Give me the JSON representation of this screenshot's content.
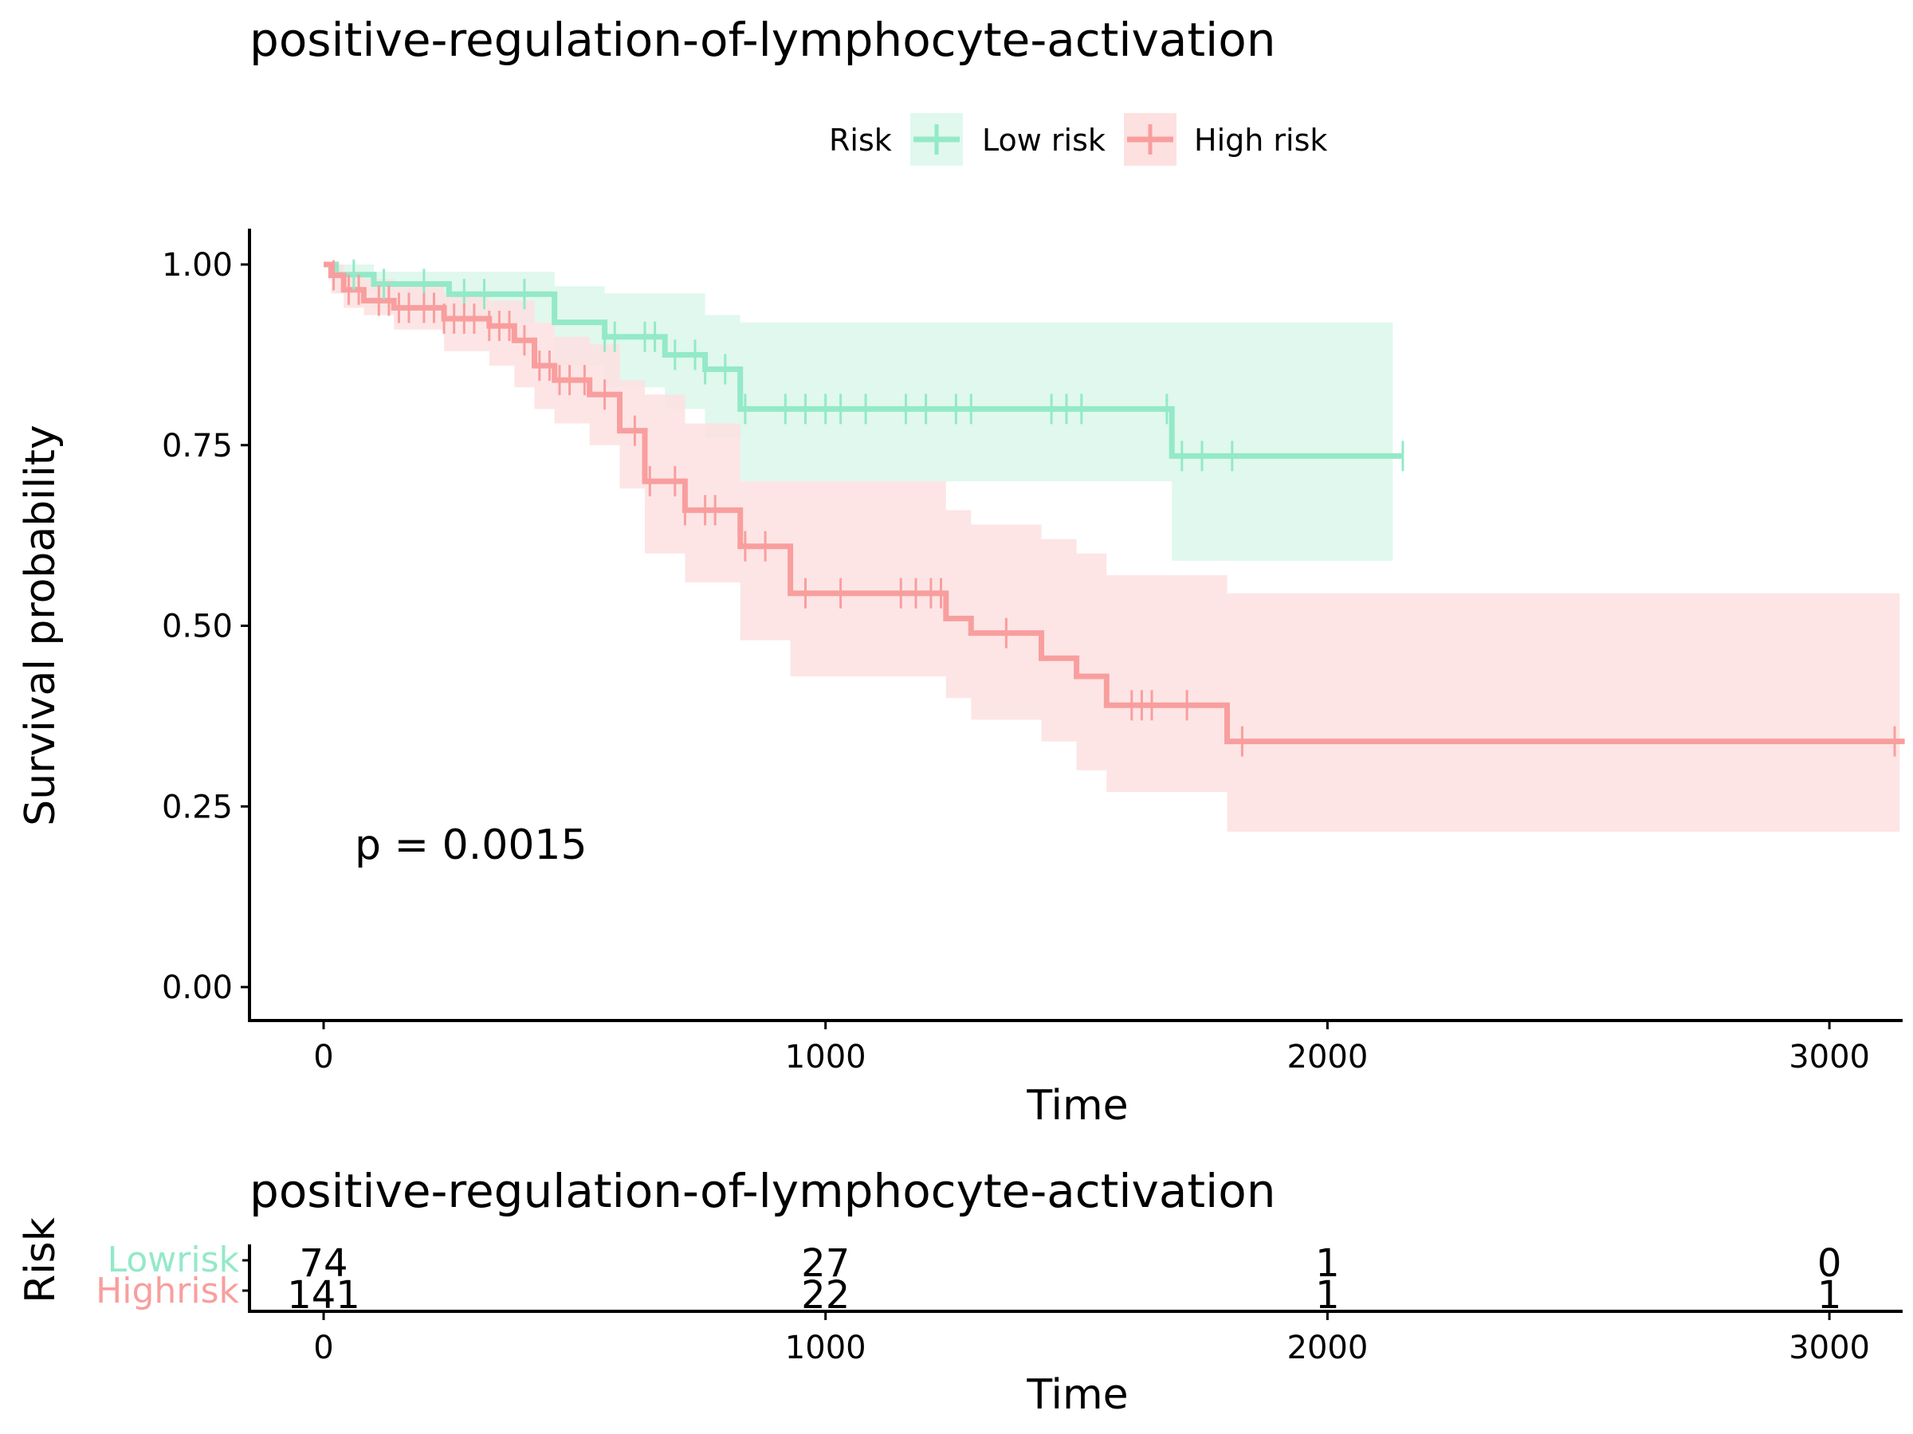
{
  "colors": {
    "low": "#93E9C8",
    "low_band": "#E0F8EE",
    "high": "#F99E9E",
    "high_band": "#FDE0E0",
    "axis": "#000000"
  },
  "km_plot": {
    "title": "positive-regulation-of-lymphocyte-activation",
    "xlabel": "Time",
    "ylabel": "Survival probability",
    "pvalue": "p = 0.0015",
    "legend": {
      "title": "Risk",
      "low_label": "Low risk",
      "high_label": "High risk"
    },
    "x_ticks": [
      "0",
      "1000",
      "2000",
      "3000"
    ],
    "y_ticks": [
      "0.00",
      "0.25",
      "0.50",
      "0.75",
      "1.00"
    ]
  },
  "risk_table": {
    "title": "positive-regulation-of-lymphocyte-activation",
    "ylabel": "Risk",
    "xlabel": "Time",
    "row_labels": {
      "low": "Lowrisk",
      "high": "Highrisk"
    },
    "low_counts": [
      "74",
      "27",
      "1",
      "0"
    ],
    "high_counts": [
      "141",
      "22",
      "1",
      "1"
    ],
    "x_ticks": [
      "0",
      "1000",
      "2000",
      "3000"
    ]
  },
  "chart_data": {
    "type": "line",
    "subtype": "kaplan-meier",
    "title": "positive-regulation-of-lymphocyte-activation",
    "xlabel": "Time",
    "ylabel": "Survival probability",
    "xlim": [
      -150,
      3150
    ],
    "ylim": [
      -0.05,
      1.05
    ],
    "x_ticks": [
      0,
      1000,
      2000,
      3000
    ],
    "y_ticks": [
      0,
      0.25,
      0.5,
      0.75,
      1.0
    ],
    "legend_position": "top",
    "pvalue": 0.0015,
    "series": [
      {
        "name": "Low risk",
        "steps": [
          [
            0,
            1.0
          ],
          [
            25,
            0.986
          ],
          [
            100,
            0.973
          ],
          [
            250,
            0.959
          ],
          [
            460,
            0.92
          ],
          [
            560,
            0.9
          ],
          [
            680,
            0.875
          ],
          [
            760,
            0.855
          ],
          [
            830,
            0.8
          ],
          [
            1690,
            0.735
          ],
          [
            2150,
            0.735
          ]
        ],
        "ci": [
          [
            0,
            1.0,
            1.0
          ],
          [
            25,
            1.0,
            0.96
          ],
          [
            100,
            0.99,
            0.94
          ],
          [
            250,
            0.99,
            0.92
          ],
          [
            460,
            0.97,
            0.86
          ],
          [
            560,
            0.96,
            0.83
          ],
          [
            680,
            0.96,
            0.8
          ],
          [
            760,
            0.93,
            0.76
          ],
          [
            830,
            0.92,
            0.7
          ],
          [
            1690,
            0.92,
            0.59
          ],
          [
            2130,
            0.92,
            0.59
          ]
        ],
        "censor": [
          60,
          120,
          200,
          280,
          320,
          400,
          560,
          580,
          640,
          660,
          700,
          740,
          760,
          800,
          840,
          920,
          960,
          1000,
          1030,
          1080,
          1160,
          1200,
          1260,
          1290,
          1450,
          1480,
          1510,
          1680,
          1710,
          1750,
          1810,
          2150
        ]
      },
      {
        "name": "High risk",
        "steps": [
          [
            0,
            1.0
          ],
          [
            15,
            0.985
          ],
          [
            40,
            0.965
          ],
          [
            80,
            0.95
          ],
          [
            140,
            0.94
          ],
          [
            240,
            0.925
          ],
          [
            330,
            0.915
          ],
          [
            380,
            0.895
          ],
          [
            420,
            0.86
          ],
          [
            460,
            0.84
          ],
          [
            530,
            0.82
          ],
          [
            590,
            0.77
          ],
          [
            640,
            0.7
          ],
          [
            720,
            0.66
          ],
          [
            830,
            0.61
          ],
          [
            930,
            0.545
          ],
          [
            1240,
            0.51
          ],
          [
            1290,
            0.49
          ],
          [
            1430,
            0.455
          ],
          [
            1500,
            0.43
          ],
          [
            1560,
            0.39
          ],
          [
            1800,
            0.34
          ],
          [
            3150,
            0.34
          ]
        ],
        "ci": [
          [
            0,
            1.0,
            1.0
          ],
          [
            15,
            1.0,
            0.96
          ],
          [
            40,
            0.99,
            0.94
          ],
          [
            80,
            0.98,
            0.93
          ],
          [
            140,
            0.97,
            0.91
          ],
          [
            240,
            0.96,
            0.88
          ],
          [
            330,
            0.95,
            0.86
          ],
          [
            380,
            0.95,
            0.83
          ],
          [
            420,
            0.92,
            0.8
          ],
          [
            460,
            0.9,
            0.78
          ],
          [
            530,
            0.89,
            0.75
          ],
          [
            590,
            0.84,
            0.69
          ],
          [
            640,
            0.82,
            0.6
          ],
          [
            720,
            0.78,
            0.56
          ],
          [
            830,
            0.7,
            0.48
          ],
          [
            930,
            0.7,
            0.43
          ],
          [
            1240,
            0.66,
            0.4
          ],
          [
            1290,
            0.64,
            0.37
          ],
          [
            1430,
            0.62,
            0.34
          ],
          [
            1500,
            0.6,
            0.3
          ],
          [
            1560,
            0.57,
            0.27
          ],
          [
            1800,
            0.545,
            0.215
          ],
          [
            3140,
            0.545,
            0.215
          ]
        ],
        "censor": [
          20,
          50,
          70,
          110,
          130,
          150,
          170,
          200,
          220,
          240,
          260,
          280,
          300,
          330,
          350,
          370,
          400,
          430,
          450,
          470,
          490,
          520,
          560,
          620,
          650,
          700,
          720,
          760,
          780,
          840,
          880,
          960,
          1030,
          1150,
          1180,
          1210,
          1230,
          1360,
          1610,
          1630,
          1650,
          1720,
          1830,
          3130
        ]
      }
    ],
    "risk_table": {
      "times": [
        0,
        1000,
        2000,
        3000
      ],
      "Low risk": [
        74,
        27,
        1,
        0
      ],
      "High risk": [
        141,
        22,
        1,
        1
      ]
    }
  }
}
